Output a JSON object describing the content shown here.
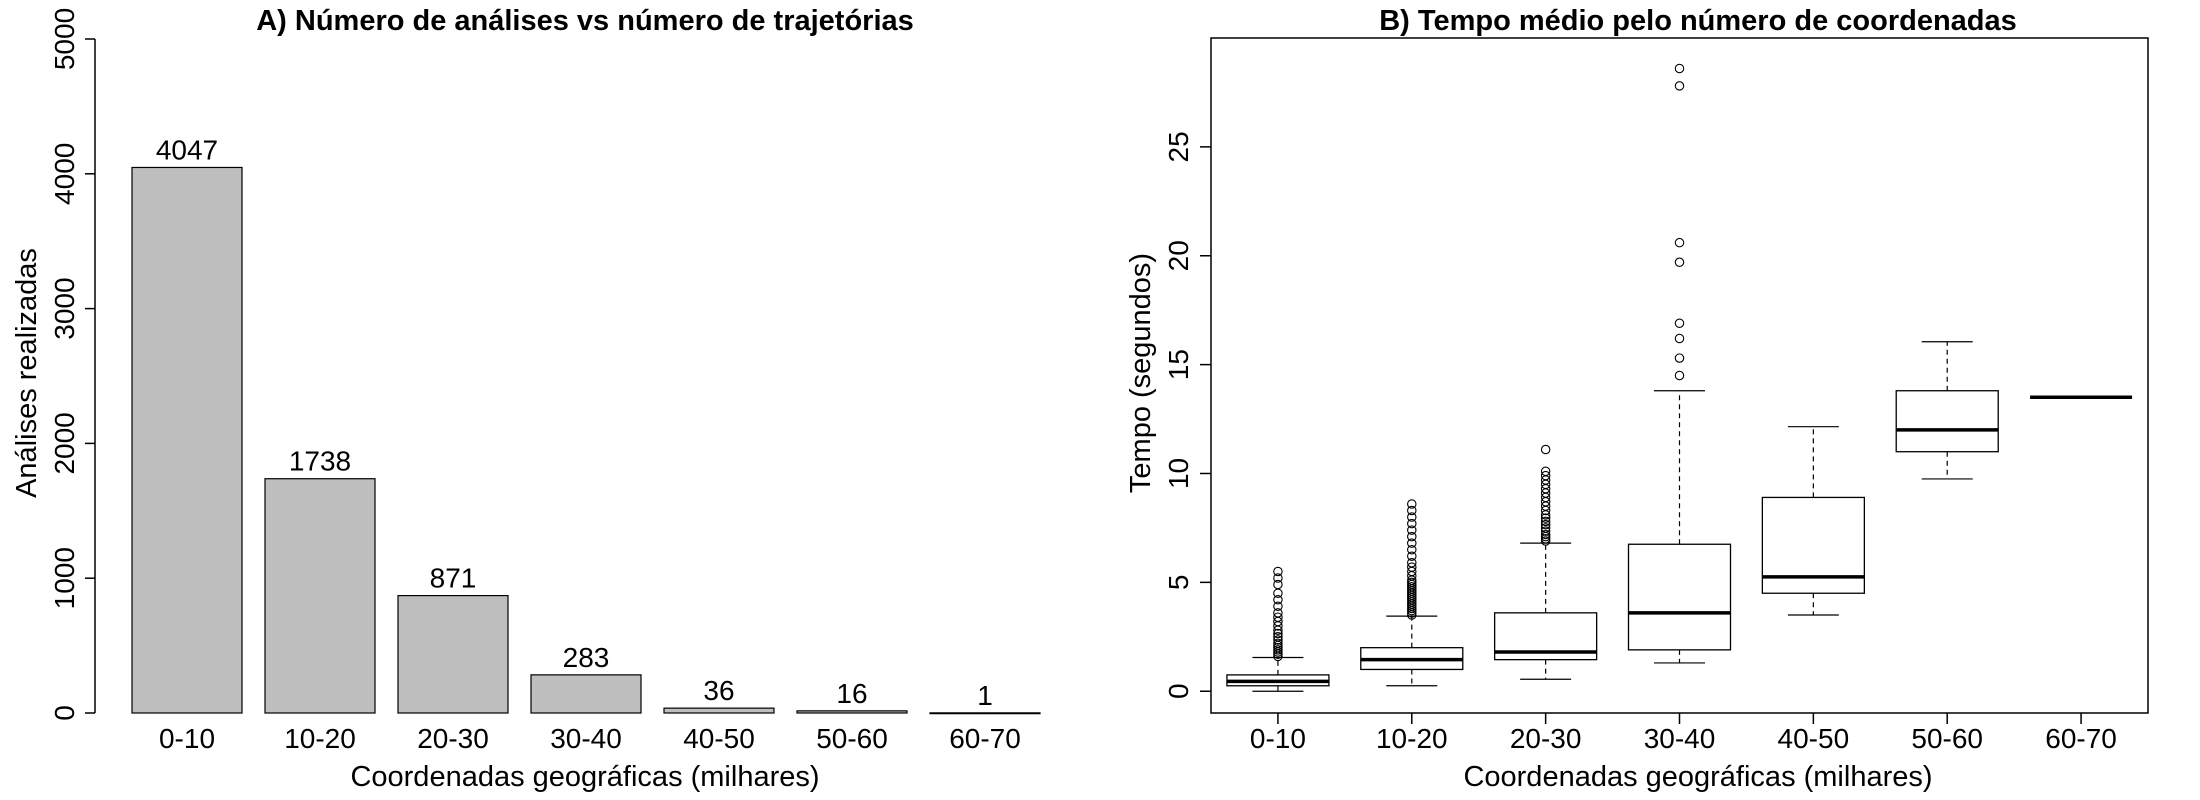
{
  "chart_data": [
    {
      "type": "bar",
      "title": "A) Número de análises vs número de trajetórias",
      "xlabel": "Coordenadas geográficas (milhares)",
      "ylabel": "Análises realizadas",
      "categories": [
        "0-10",
        "10-20",
        "20-30",
        "30-40",
        "40-50",
        "50-60",
        "60-70"
      ],
      "values": [
        4047,
        1738,
        871,
        283,
        36,
        16,
        1
      ],
      "data_labels": [
        "4047",
        "1738",
        "871",
        "283",
        "36",
        "16",
        "1"
      ],
      "ylim": [
        0,
        5000
      ],
      "yticks": [
        0,
        1000,
        2000,
        3000,
        4000,
        5000
      ],
      "ytick_labels": [
        "0",
        "1000",
        "2000",
        "3000",
        "4000",
        "5000"
      ],
      "bar_color": "#bebebe",
      "grid": false
    },
    {
      "type": "boxplot",
      "title": "B) Tempo médio pelo número de coordenadas",
      "xlabel": "Coordenadas geográficas (milhares)",
      "ylabel": "Tempo (segundos)",
      "categories": [
        "0-10",
        "10-20",
        "20-30",
        "30-40",
        "40-50",
        "50-60",
        "60-70"
      ],
      "ylim": [
        -1,
        30
      ],
      "yticks": [
        0,
        5,
        10,
        15,
        20,
        25
      ],
      "ytick_labels": [
        "0",
        "5",
        "10",
        "15",
        "20",
        "25"
      ],
      "grid": false,
      "boxes": [
        {
          "category": "0-10",
          "whisker_low": 0.0,
          "q1": 0.25,
          "median": 0.45,
          "q3": 0.75,
          "whisker_high": 1.55,
          "outliers": [
            1.6,
            1.7,
            1.8,
            1.9,
            2.0,
            2.1,
            2.2,
            2.35,
            2.5,
            2.65,
            2.8,
            3.0,
            3.2,
            3.4,
            3.6,
            3.9,
            4.2,
            4.5,
            4.9,
            5.2,
            5.5
          ]
        },
        {
          "category": "10-20",
          "whisker_low": 0.25,
          "q1": 1.0,
          "median": 1.45,
          "q3": 2.0,
          "whisker_high": 3.45,
          "outliers": [
            3.5,
            3.6,
            3.7,
            3.8,
            3.9,
            4.0,
            4.1,
            4.2,
            4.3,
            4.4,
            4.5,
            4.6,
            4.7,
            4.8,
            4.9,
            5.0,
            5.1,
            5.3,
            5.5,
            5.7,
            5.9,
            6.2,
            6.5,
            6.8,
            7.1,
            7.4,
            7.7,
            8.0,
            8.3,
            8.6
          ]
        },
        {
          "category": "20-30",
          "whisker_low": 0.55,
          "q1": 1.45,
          "median": 1.8,
          "q3": 3.6,
          "whisker_high": 6.8,
          "outliers": [
            6.9,
            7.0,
            7.1,
            7.2,
            7.35,
            7.5,
            7.65,
            7.8,
            7.95,
            8.1,
            8.3,
            8.5,
            8.7,
            8.9,
            9.1,
            9.3,
            9.5,
            9.7,
            9.9,
            10.1,
            11.1
          ]
        },
        {
          "category": "30-40",
          "whisker_low": 1.3,
          "q1": 1.9,
          "median": 3.6,
          "q3": 6.75,
          "whisker_high": 13.8,
          "outliers": [
            14.5,
            15.3,
            16.2,
            16.9,
            19.7,
            20.6,
            27.8,
            28.6
          ]
        },
        {
          "category": "40-50",
          "whisker_low": 3.5,
          "q1": 4.5,
          "median": 5.25,
          "q3": 8.9,
          "whisker_high": 12.15,
          "outliers": []
        },
        {
          "category": "50-60",
          "whisker_low": 9.75,
          "q1": 11.0,
          "median": 12.0,
          "q3": 13.8,
          "whisker_high": 16.05,
          "outliers": []
        },
        {
          "category": "60-70",
          "whisker_low": 13.5,
          "q1": 13.5,
          "median": 13.5,
          "q3": 13.5,
          "whisker_high": 13.5,
          "outliers": []
        }
      ]
    }
  ]
}
